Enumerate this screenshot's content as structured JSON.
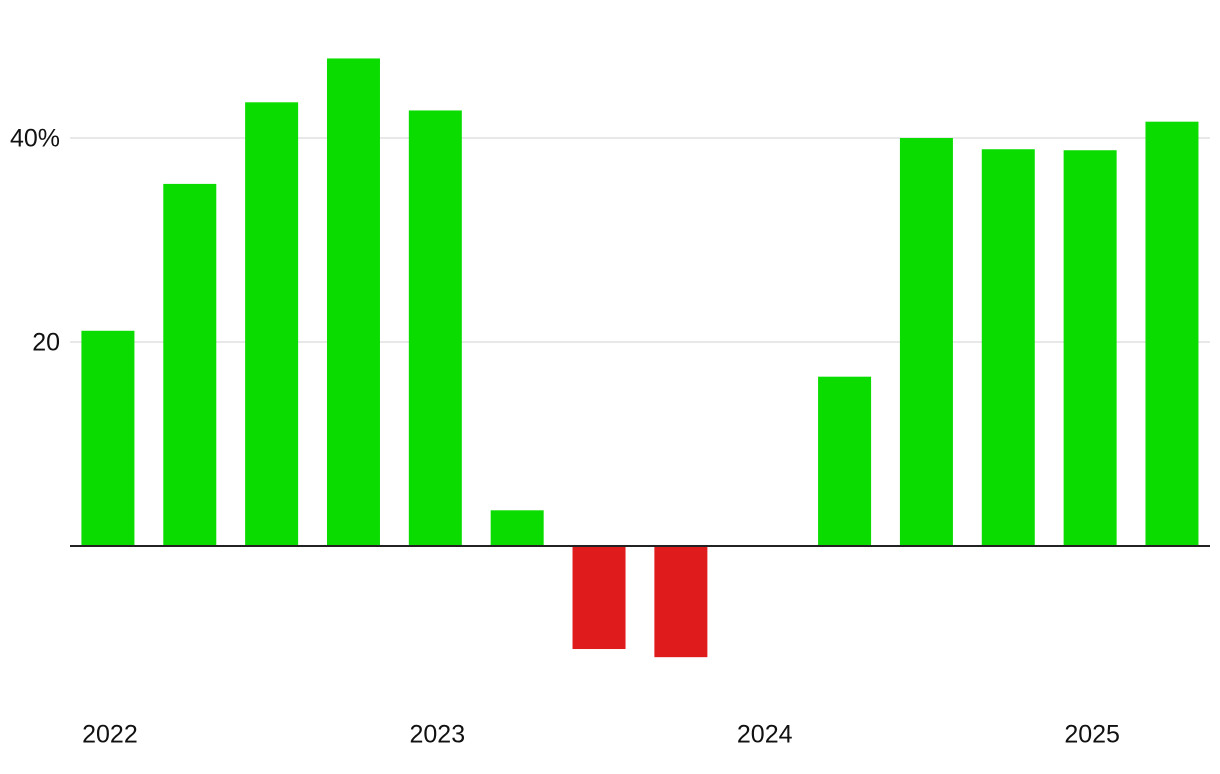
{
  "chart_data": {
    "type": "bar",
    "categories": [
      "2022",
      null,
      null,
      null,
      "2023",
      null,
      null,
      null,
      "2024",
      null,
      null,
      null,
      "2025",
      null
    ],
    "values": [
      21.1,
      35.5,
      43.5,
      47.8,
      42.7,
      3.5,
      -10.1,
      -10.9,
      0,
      16.6,
      40,
      38.9,
      38.8,
      41.6
    ],
    "positive_color": "#0adc00",
    "negative_color": "#e01b1b",
    "ylim": [
      -15,
      50
    ],
    "yticks": [
      20,
      {
        "value": 40,
        "label": "40%"
      }
    ],
    "grid": true
  }
}
